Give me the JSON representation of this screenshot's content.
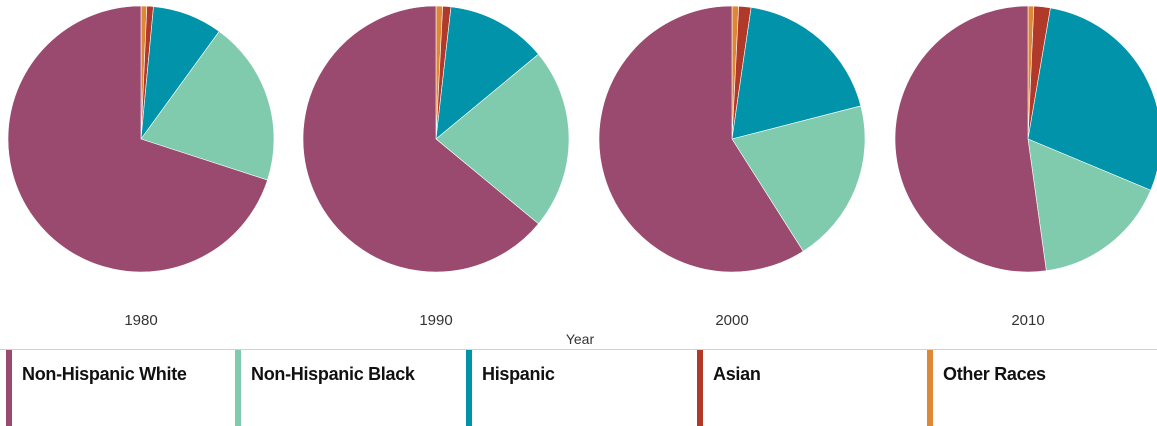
{
  "chart_data": {
    "type": "pie",
    "xlabel": "Year",
    "categories": [
      "Non-Hispanic White",
      "Non-Hispanic Black",
      "Hispanic",
      "Asian",
      "Other Races"
    ],
    "colors": {
      "Non-Hispanic White": "#9a4a6e",
      "Non-Hispanic Black": "#80cbae",
      "Hispanic": "#0093a9",
      "Asian": "#b0392a",
      "Other Races": "#de8736"
    },
    "pies": [
      {
        "label": "1980",
        "values": [
          70.0,
          20.0,
          8.5,
          0.8,
          0.7
        ]
      },
      {
        "label": "1990",
        "values": [
          64.0,
          22.0,
          12.2,
          1.0,
          0.8
        ]
      },
      {
        "label": "2000",
        "values": [
          59.0,
          20.0,
          18.7,
          1.5,
          0.8
        ]
      },
      {
        "label": "2010",
        "values": [
          52.2,
          16.5,
          28.6,
          2.0,
          0.7
        ]
      }
    ]
  },
  "legend_label_index": {
    "0": "Non-Hispanic White",
    "1": "Non-Hispanic Black",
    "2": "Hispanic",
    "3": "Asian",
    "4": "Other Races"
  }
}
